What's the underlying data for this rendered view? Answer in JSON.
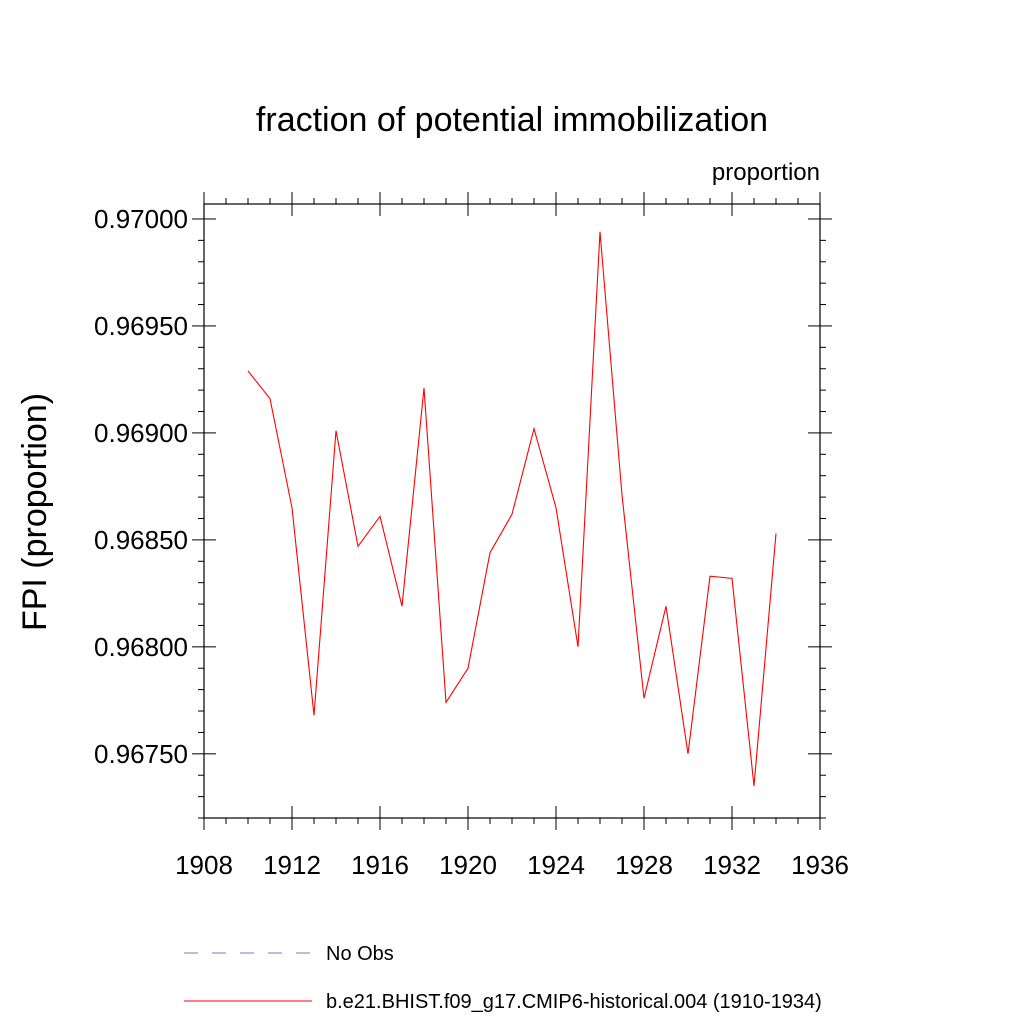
{
  "chart_data": {
    "type": "line",
    "title": "fraction of potential immobilization",
    "units_label": "proportion",
    "ylabel": "FPI  (proportion)",
    "xlabel": "",
    "xlim": [
      1908,
      1936
    ],
    "ylim": [
      0.9672,
      0.97007
    ],
    "xticks": [
      1908,
      1912,
      1916,
      1920,
      1924,
      1928,
      1932,
      1936
    ],
    "xtick_labels": [
      "1908",
      "1912",
      "1916",
      "1920",
      "1924",
      "1928",
      "1932",
      "1936"
    ],
    "yticks": [
      0.9675,
      0.968,
      0.9685,
      0.969,
      0.9695,
      0.97
    ],
    "ytick_labels": [
      "0.96750",
      "0.96800",
      "0.96850",
      "0.96900",
      "0.96950",
      "0.97000"
    ],
    "series": [
      {
        "name": "b.e21.BHIST.f09_g17.CMIP6-historical.004 (1910-1934)",
        "color": "#ff0000",
        "style": "solid",
        "x": [
          1910,
          1911,
          1912,
          1913,
          1914,
          1915,
          1916,
          1917,
          1918,
          1919,
          1920,
          1921,
          1922,
          1923,
          1924,
          1925,
          1926,
          1927,
          1928,
          1929,
          1930,
          1931,
          1932,
          1933,
          1934
        ],
        "values": [
          0.96929,
          0.96916,
          0.96865,
          0.96768,
          0.96901,
          0.96847,
          0.96861,
          0.96819,
          0.96921,
          0.96774,
          0.9679,
          0.96844,
          0.96862,
          0.96902,
          0.96865,
          0.968,
          0.96994,
          0.96871,
          0.96776,
          0.96819,
          0.9675,
          0.96833,
          0.96832,
          0.96735,
          0.96853
        ]
      }
    ],
    "legend": [
      {
        "label": "No Obs",
        "color": "#7777cc",
        "style": "dashed"
      },
      {
        "label": "b.e21.BHIST.f09_g17.CMIP6-historical.004 (1910-1934)",
        "color": "#ff0000",
        "style": "solid"
      }
    ],
    "legend_position": "bottom",
    "grid": false
  }
}
